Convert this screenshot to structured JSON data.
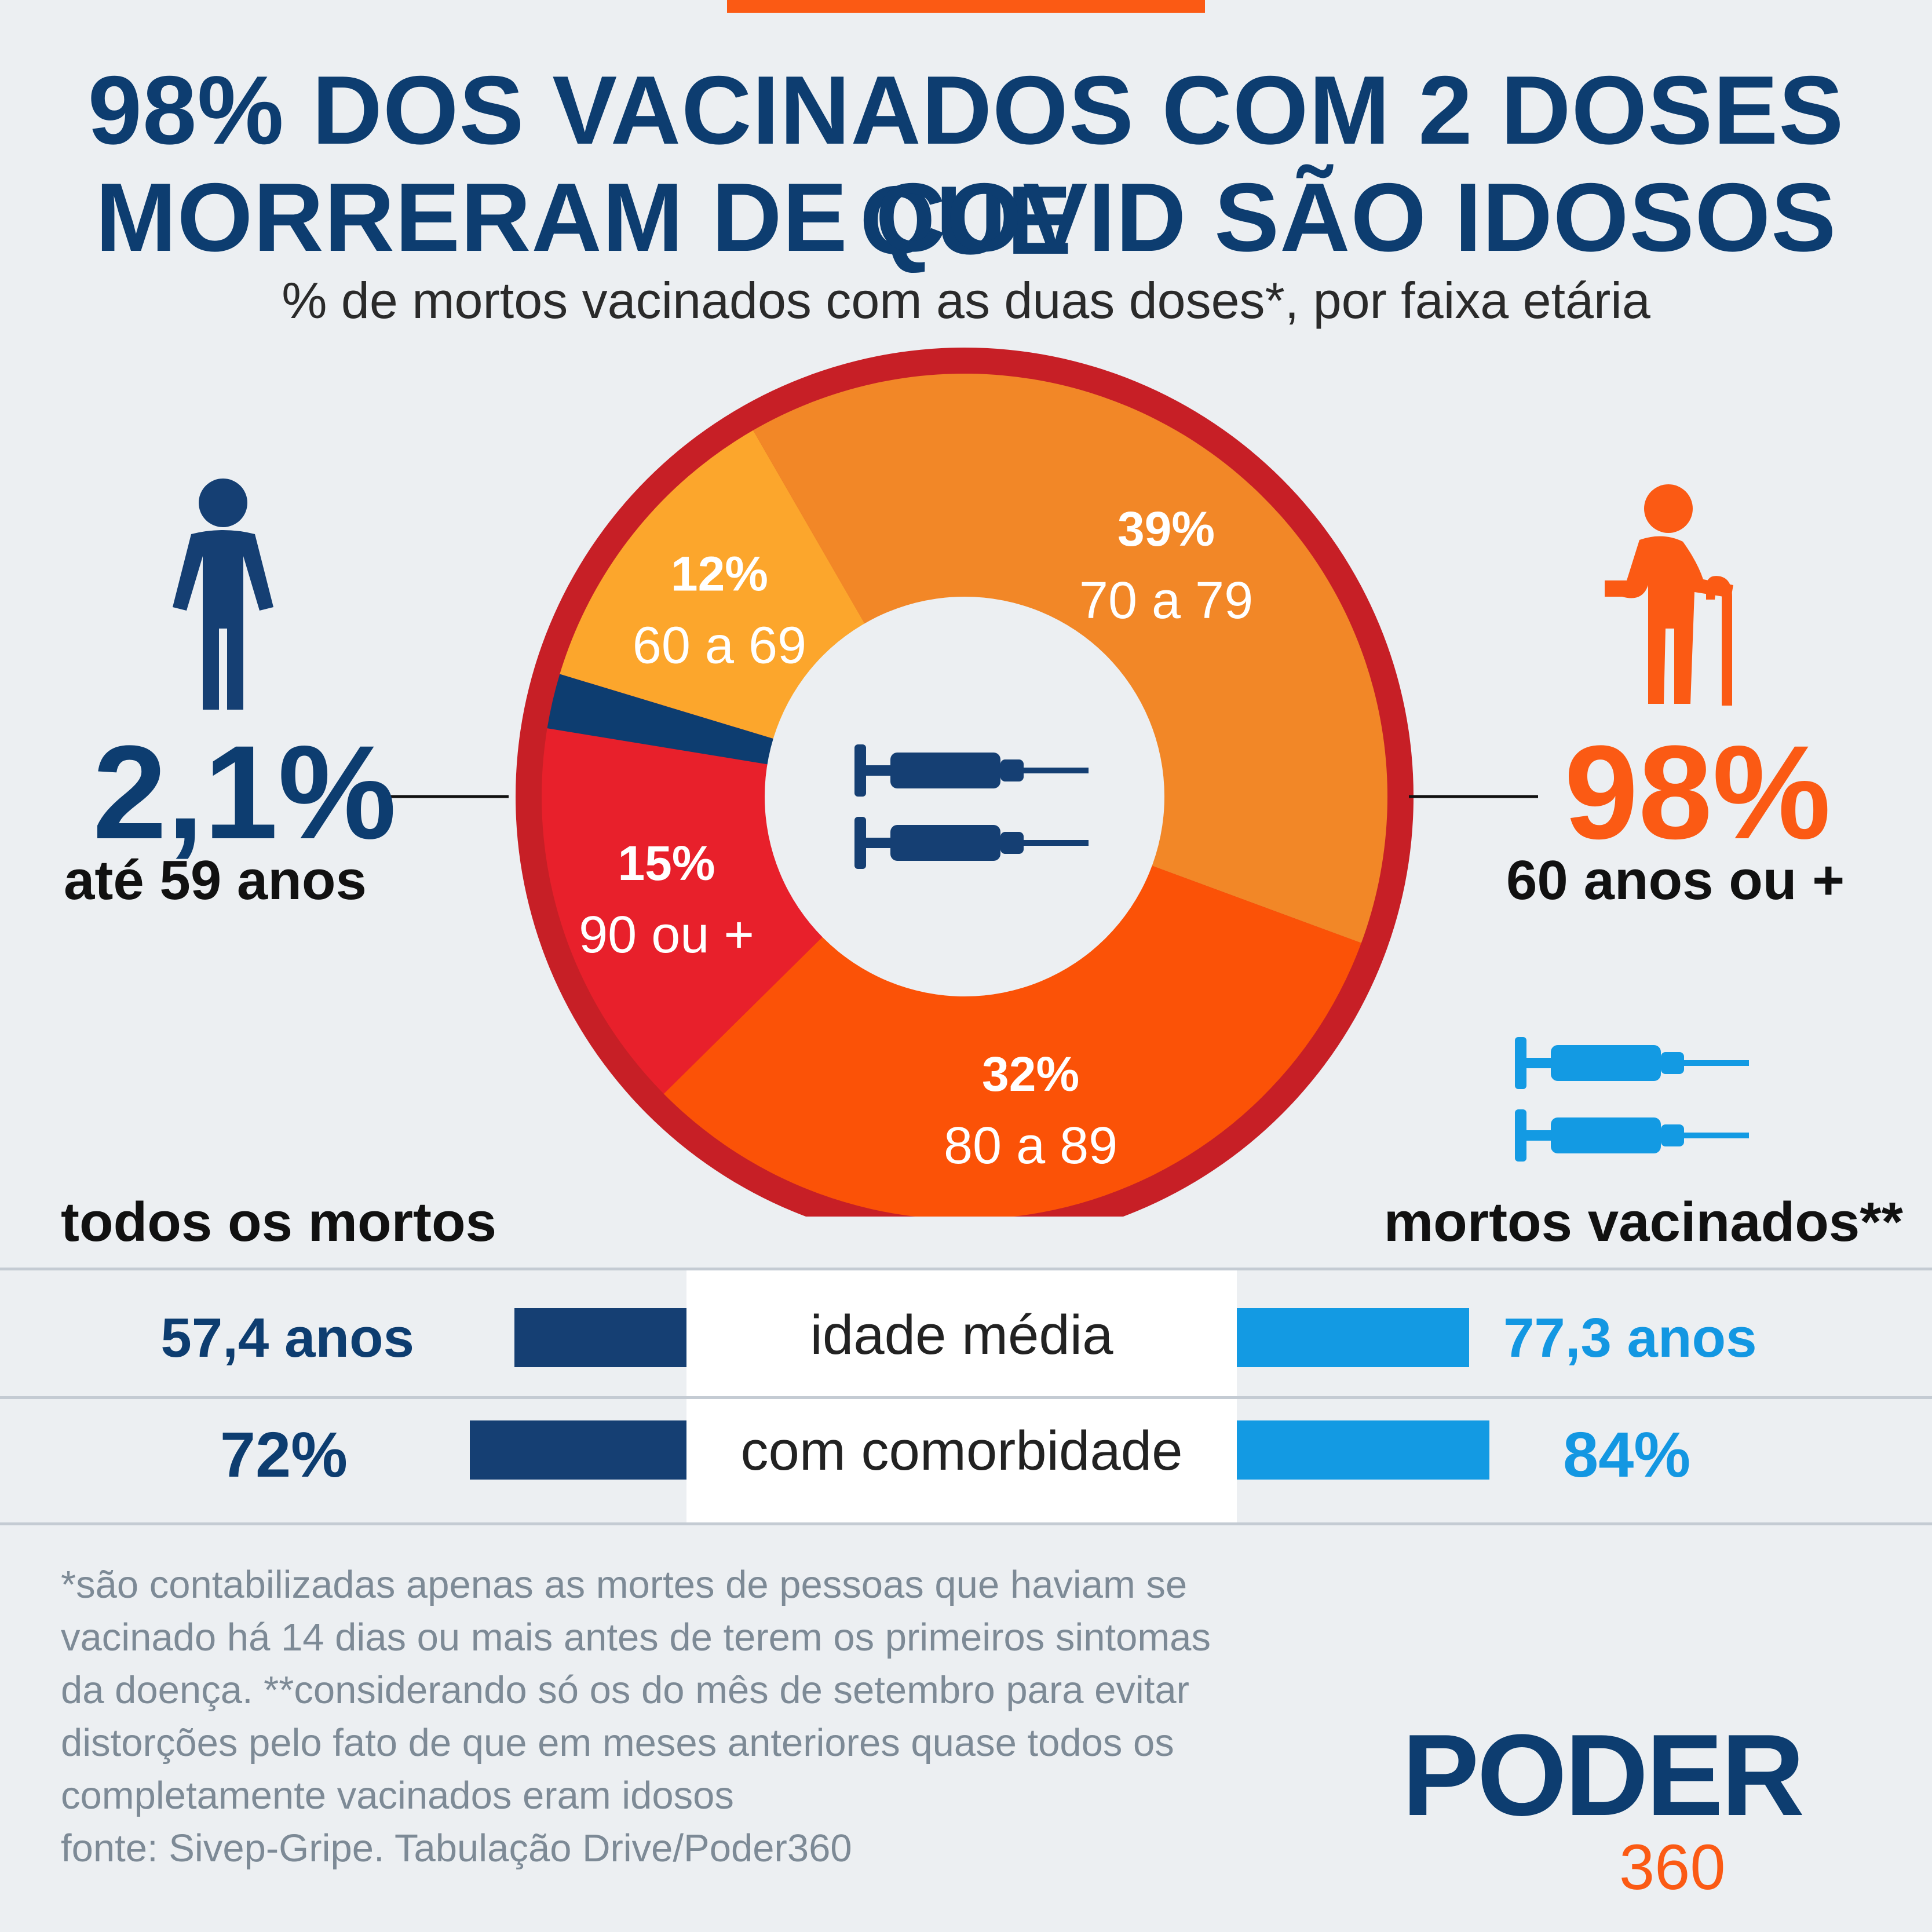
{
  "title_lines": [
    "98% DOS VACINADOS COM 2 DOSES QUE",
    "MORRERAM DE COVID SÃO IDOSOS"
  ],
  "subtitle": "% de mortos vacinados com as duas doses*, por faixa etária",
  "chart_data": {
    "type": "pie",
    "variant": "donut",
    "title": "98% DOS VACINADOS COM 2 DOSES QUE MORRERAM DE COVID SÃO IDOSOS",
    "subtitle": "% de mortos vacinados com as duas doses*, por faixa etária",
    "slices": [
      {
        "label": "70 a 79",
        "value": 39,
        "value_label": "39%",
        "color": "#f28727",
        "show_label": true
      },
      {
        "label": "80 a 89",
        "value": 32,
        "value_label": "32%",
        "color": "#fb5207",
        "show_label": true
      },
      {
        "label": "90 ou +",
        "value": 15,
        "value_label": "15%",
        "color": "#e8202b",
        "show_label": true
      },
      {
        "label": "até 59 anos",
        "value": 2.1,
        "value_label": "2,1%",
        "color": "#0d3d70",
        "show_label": false
      },
      {
        "label": "60 a 69",
        "value": 12,
        "value_label": "12%",
        "color": "#fca62c",
        "show_label": true
      }
    ],
    "ring_color": "#c71f26",
    "hole_color": "#eceff2"
  },
  "left_callout": {
    "value": "2,1%",
    "label": "até 59 anos",
    "color": "#0d3d70"
  },
  "right_callout": {
    "value": "98%",
    "label": "60 anos ou +",
    "color": "#fb5a14"
  },
  "comparison": {
    "left_header": "todos os mortos",
    "right_header": "mortos vacinados**",
    "rows": [
      {
        "label": "idade média",
        "left_value": "57,4 anos",
        "right_value": "77,3 anos",
        "left_num": 57.4,
        "right_num": 77.3
      },
      {
        "label": "com comorbidade",
        "left_value": "72%",
        "right_value": "84%",
        "left_num": 72,
        "right_num": 84
      }
    ],
    "left_color": "#153f73",
    "right_color": "#139ae3"
  },
  "footnote": [
    "*são contabilizadas apenas as mortes de pessoas que haviam se",
    "vacinado há 14 dias ou mais antes de terem os primeiros sintomas",
    "da doença. **considerando só os do mês de setembro para evitar",
    "distorções pelo fato de que em meses anteriores quase todos os",
    "completamente vacinados eram idosos",
    "fonte: Sivep-Gripe. Tabulação Drive/Poder360"
  ],
  "logo": {
    "word": "PODER",
    "number": "360"
  },
  "icons": {
    "person": "person-icon",
    "elderly": "elderly-person-icon",
    "syringe_dark": "syringe-icon",
    "syringe_light": "syringe-icon",
    "sun": "sunburst-logo-icon"
  }
}
